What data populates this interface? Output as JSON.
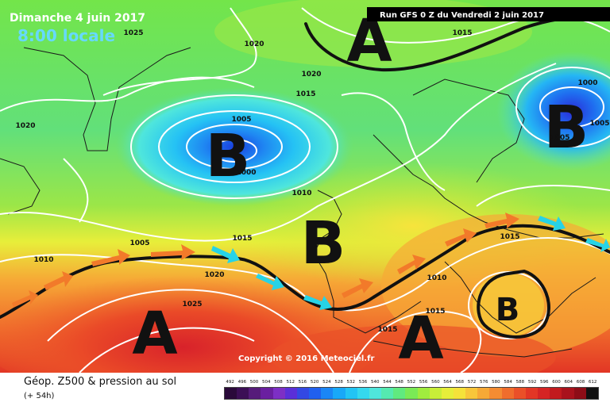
{
  "header": {
    "date": "Dimanche 4 juin 2017",
    "time": "8:00 locale",
    "run": "Run GFS 0 Z du Vendredi 2 juin 2017"
  },
  "pressure_centers": [
    {
      "letter": "A",
      "type": "high"
    },
    {
      "letter": "B",
      "type": "low"
    },
    {
      "letter": "B",
      "type": "low"
    },
    {
      "letter": "B",
      "type": "low"
    },
    {
      "letter": "A",
      "type": "high"
    },
    {
      "letter": "A",
      "type": "high"
    },
    {
      "letter": "B",
      "type": "low"
    }
  ],
  "isobar_labels": [
    "1025",
    "1020",
    "1020",
    "1020",
    "1015",
    "1005",
    "1010",
    "1005",
    "1000",
    "1010",
    "1015",
    "1020",
    "1025",
    "1015",
    "1015",
    "1015",
    "1010",
    "1000",
    "1005",
    "1005",
    "1015"
  ],
  "copyright": "Copyright © 2016 Meteociel.fr",
  "footer": {
    "caption": "Géop. Z500 & pression au sol",
    "forecast_step": "(+ 54h)"
  },
  "scale": {
    "labels": [
      "492",
      "496",
      "500",
      "504",
      "508",
      "512",
      "516",
      "520",
      "524",
      "528",
      "532",
      "536",
      "540",
      "544",
      "548",
      "552",
      "556",
      "560",
      "564",
      "568",
      "572",
      "576",
      "580",
      "584",
      "588",
      "592",
      "596",
      "600",
      "604",
      "608",
      "612"
    ],
    "colors": [
      "#2a0a3a",
      "#3c0f56",
      "#561b7a",
      "#6a1fa0",
      "#7d2fc5",
      "#5a2fd8",
      "#3348e3",
      "#2060ef",
      "#1a86f6",
      "#18a8f8",
      "#22c4f4",
      "#35d8ee",
      "#4fe6dc",
      "#55eab0",
      "#60ea7f",
      "#7aea56",
      "#a0ec3e",
      "#c8ee38",
      "#e6ee3a",
      "#f5e23a",
      "#f8c63a",
      "#f6a936",
      "#f48c32",
      "#f06d2c",
      "#ea5028",
      "#e23625",
      "#d52424",
      "#c21a1e",
      "#a9121c",
      "#8d0d17",
      "#111111"
    ]
  },
  "colors": {
    "text_header": "#ffffff",
    "text_time": "#66d9ff",
    "jet_arrow_warm": "#f27a2a",
    "jet_arrow_cold": "#27d3e6"
  }
}
